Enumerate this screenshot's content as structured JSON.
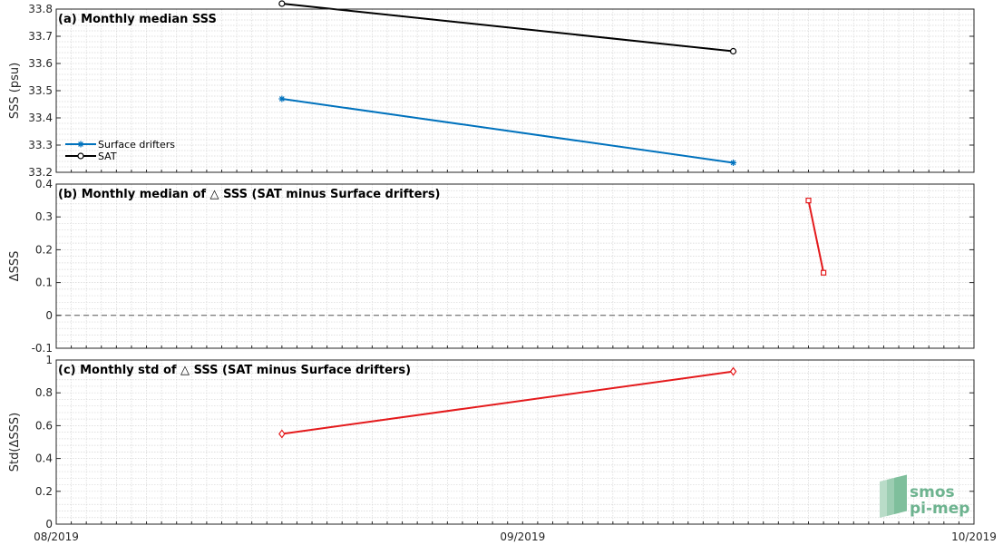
{
  "chart_data": [
    {
      "type": "line",
      "title": "(a) Monthly median SSS",
      "ylabel": "SSS (psu)",
      "ylim": [
        33.2,
        33.8
      ],
      "yticks": [
        33.2,
        33.3,
        33.4,
        33.5,
        33.6,
        33.7,
        33.8
      ],
      "ytick_labels": [
        "33.2",
        "33.3",
        "33.4",
        "33.5",
        "33.6",
        "33.7",
        "33.8"
      ],
      "xlim": [
        "2019-08-01",
        "2019-10-01"
      ],
      "grid": true,
      "legend_position": "bottom-left",
      "series": [
        {
          "name": "Surface drifters",
          "color": "#0072bd",
          "marker": "star",
          "x": [
            "2019-08-16",
            "2019-09-15"
          ],
          "y": [
            33.47,
            33.235
          ]
        },
        {
          "name": "SAT",
          "color": "#000000",
          "marker": "circle",
          "x": [
            "2019-08-16",
            "2019-09-15"
          ],
          "y": [
            33.82,
            33.645
          ]
        }
      ]
    },
    {
      "type": "line",
      "title": "(b) Monthly median of △ SSS (SAT minus Surface drifters)",
      "ylabel": "ΔSSS",
      "ylim": [
        -0.1,
        0.4
      ],
      "yticks": [
        -0.1,
        0,
        0.1,
        0.2,
        0.3,
        0.4
      ],
      "ytick_labels": [
        "-0.1",
        "0",
        "0.1",
        "0.2",
        "0.3",
        "0.4"
      ],
      "xlim": [
        "2019-08-01",
        "2019-10-01"
      ],
      "grid": true,
      "reference_line": 0,
      "series": [
        {
          "color": "#e41a1c",
          "marker": "square",
          "x": [
            "2019-09-20",
            "2019-09-21"
          ],
          "y": [
            0.35,
            0.13
          ]
        }
      ]
    },
    {
      "type": "line",
      "title": "(c) Monthly std of △ SSS (SAT minus Surface drifters)",
      "ylabel": "Std(ΔSSS)",
      "ylim": [
        0,
        1
      ],
      "yticks": [
        0,
        0.2,
        0.4,
        0.6,
        0.8,
        1
      ],
      "ytick_labels": [
        "0",
        "0.2",
        "0.4",
        "0.6",
        "0.8",
        "1"
      ],
      "xlim": [
        "2019-08-01",
        "2019-10-01"
      ],
      "grid": true,
      "series": [
        {
          "color": "#e41a1c",
          "marker": "diamond",
          "x": [
            "2019-08-16",
            "2019-09-15"
          ],
          "y": [
            0.55,
            0.93
          ]
        }
      ]
    }
  ],
  "x_axis": {
    "ticks": [
      "2019-08-01",
      "2019-09-01",
      "2019-10-01"
    ],
    "tick_labels": [
      "08/2019",
      "09/2019",
      "10/2019"
    ]
  },
  "logo": {
    "line1": "smos",
    "line2": "pi-mep",
    "color": "#6db38f"
  }
}
